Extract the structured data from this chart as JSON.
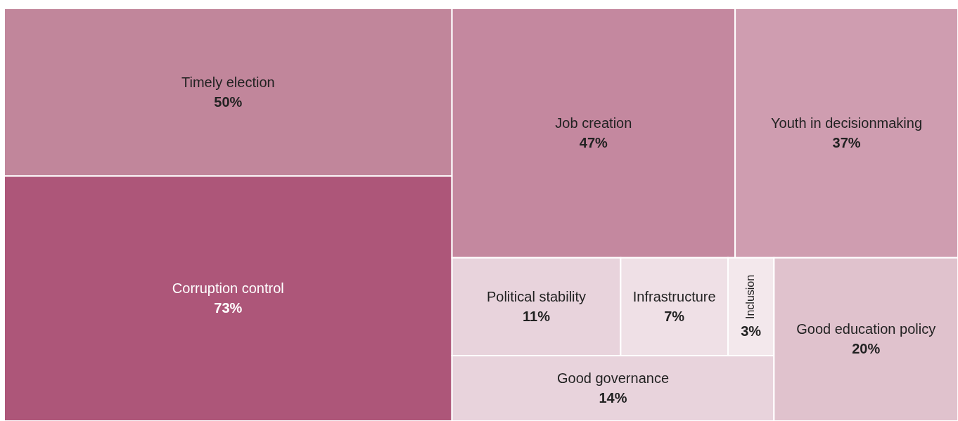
{
  "chart_data": {
    "type": "other",
    "categories": [
      "Timely election",
      "Corruption control",
      "Job creation",
      "Youth in decisionmaking",
      "Political stability",
      "Infrastructure",
      "Inclusion",
      "Good governance",
      "Good education policy"
    ],
    "values": [
      50,
      73,
      47,
      37,
      11,
      7,
      3,
      14,
      20
    ],
    "value_labels": [
      "50%",
      "73%",
      "47%",
      "37%",
      "11%",
      "7%",
      "3%",
      "14%",
      "20%"
    ],
    "colors": [
      "#c1869b",
      "#ad5679",
      "#c4889f",
      "#cf9db0",
      "#e8d3dc",
      "#efe0e6",
      "#f3e8ec",
      "#e8d3dc",
      "#e0c2cd"
    ]
  }
}
